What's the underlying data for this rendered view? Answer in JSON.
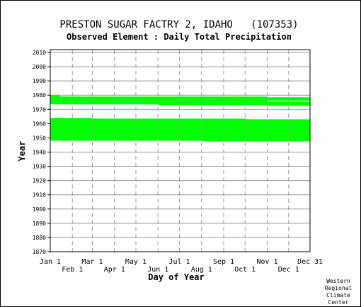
{
  "chart_data": {
    "type": "heatmap",
    "title": "PRESTON SUGAR FACTRY 2, IDAHO   (107353)",
    "subtitle": "Observed Element : Daily Total Precipitation",
    "xlabel": "Day of Year",
    "ylabel": "Year",
    "ylim": [
      1870,
      2012
    ],
    "xlim": [
      1,
      365
    ],
    "yticks": [
      1870,
      1880,
      1890,
      1900,
      1910,
      1920,
      1930,
      1940,
      1950,
      1960,
      1970,
      1980,
      1990,
      2000,
      2010
    ],
    "xticks_upper": [
      {
        "label": "Jan 1",
        "day": 1
      },
      {
        "label": "Mar 1",
        "day": 60
      },
      {
        "label": "May 1",
        "day": 121
      },
      {
        "label": "Jul 1",
        "day": 182
      },
      {
        "label": "Sep 1",
        "day": 244
      },
      {
        "label": "Nov 1",
        "day": 305
      },
      {
        "label": "Dec 31",
        "day": 365
      }
    ],
    "xticks_lower": [
      {
        "label": "Feb 1",
        "day": 32
      },
      {
        "label": "Apr 1",
        "day": 91
      },
      {
        "label": "Jun 1",
        "day": 152
      },
      {
        "label": "Aug 1",
        "day": 213
      },
      {
        "label": "Oct 1",
        "day": 274
      },
      {
        "label": "Dec 1",
        "day": 335
      }
    ],
    "gridlines_days": [
      32,
      60,
      91,
      121,
      152,
      182,
      213,
      244,
      274,
      305,
      335
    ],
    "grid": true,
    "series": [
      {
        "color": "#00ff00",
        "records": [
          {
            "start_day": 1,
            "end_day": 15,
            "start_year": 1973.5,
            "end_year": 1980
          },
          {
            "start_day": 15,
            "end_day": 152,
            "start_year": 1973.5,
            "end_year": 1979
          },
          {
            "start_day": 152,
            "end_day": 305,
            "start_year": 1973,
            "end_year": 1979
          },
          {
            "start_day": 305,
            "end_day": 365,
            "start_year": 1972.5,
            "end_year": 1978.5
          },
          {
            "start_day": 1,
            "end_day": 60,
            "start_year": 1948,
            "end_year": 1964
          },
          {
            "start_day": 60,
            "end_day": 213,
            "start_year": 1948,
            "end_year": 1963.5
          },
          {
            "start_day": 213,
            "end_day": 274,
            "start_year": 1947.5,
            "end_year": 1963.5
          },
          {
            "start_day": 274,
            "end_day": 365,
            "start_year": 1947.5,
            "end_year": 1963
          }
        ],
        "gaps": [
          {
            "start_day": 305,
            "end_day": 365,
            "start_year": 1975.5,
            "end_year": 1976
          },
          {
            "start_day": 330,
            "end_day": 331,
            "start_year": 1958,
            "end_year": 1958.5
          }
        ]
      }
    ]
  },
  "credit": [
    "Western",
    "Regional",
    "Climate",
    "Center"
  ]
}
